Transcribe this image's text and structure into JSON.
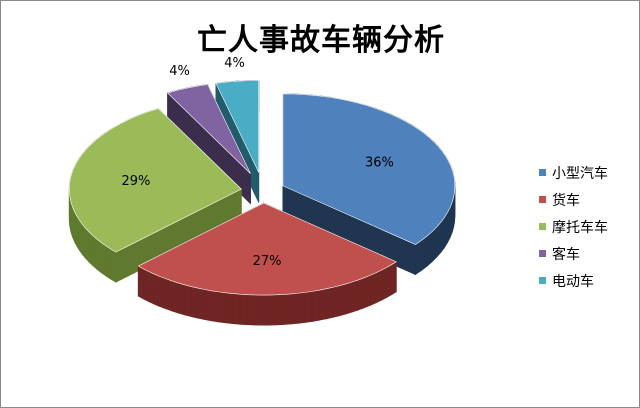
{
  "chart_data": {
    "type": "pie",
    "title": "亡人事故车辆分析",
    "three_d": true,
    "exploded": true,
    "legend_position": "right",
    "categories": [
      "小型汽车",
      "货车",
      "摩托车车",
      "客车",
      "电动车"
    ],
    "values": [
      36,
      27,
      29,
      4,
      4
    ],
    "data_labels": [
      "36%",
      "27%",
      "29%",
      "4%",
      "4%"
    ],
    "colors": [
      "#4f81bd",
      "#c0504d",
      "#9bbb59",
      "#8064a2",
      "#4bacc6"
    ],
    "side_colors": [
      "#1f3550",
      "#6e2523",
      "#5f7a2e",
      "#3b2d4c",
      "#215c6b"
    ]
  }
}
